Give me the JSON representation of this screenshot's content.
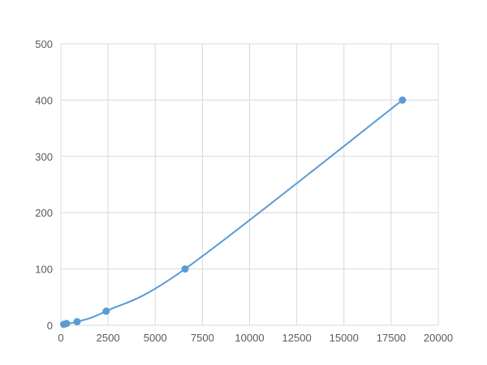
{
  "chart_data": {
    "type": "scatter",
    "title": "",
    "xlabel": "",
    "ylabel": "",
    "xlim": [
      0,
      20000
    ],
    "ylim": [
      0,
      500
    ],
    "xticks": [
      0,
      2500,
      5000,
      7500,
      10000,
      12500,
      15000,
      17500,
      20000
    ],
    "yticks": [
      0,
      100,
      200,
      300,
      400,
      500
    ],
    "grid": true,
    "color": "#5b9bd5",
    "series": [
      {
        "x": [
          150,
          300,
          860,
          2400,
          6580,
          18100
        ],
        "y": [
          1.5625,
          3.125,
          6.25,
          25,
          100,
          400
        ],
        "line": "smooth"
      }
    ]
  }
}
